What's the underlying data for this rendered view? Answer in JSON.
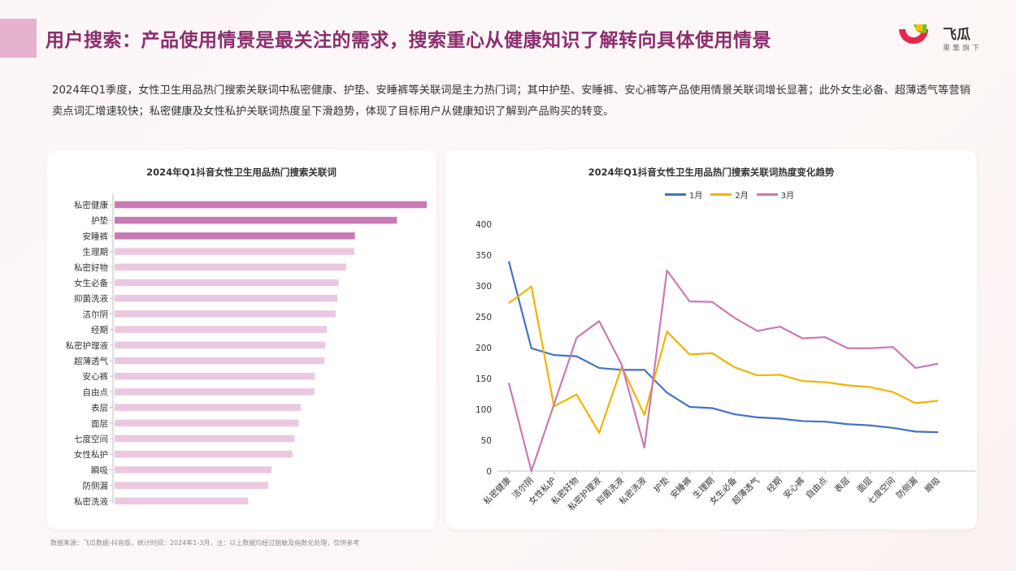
{
  "header": {
    "title": "用户搜索：产品使用情景是最关注的需求，搜索重心从健康知识了解转向具体使用情景",
    "logo_name": "飞瓜",
    "logo_sub": "果集旗下"
  },
  "description": "2024年Q1季度，女性卫生用品热门搜索关联词中私密健康、护垫、安睡裤等关联词是主力热门词；其中护垫、安睡裤、安心裤等产品使用情景关联词增长显著；此外女生必备、超薄透气等营销卖点词汇增速较快；私密健康及女性私护关联词热度呈下滑趋势，体现了目标用户从健康知识了解到产品购买的转变。",
  "footer": "数据来源：飞瓜数据-抖音版，统计时间：2024年1-3月，注：以上数据均经过脱敏及指数化处理，仅供参考",
  "colors": {
    "title": "#8b2e6e",
    "bar_strong": "#c97ab4",
    "bar_light": "#ecc8e0",
    "series_jan": "#4472c4",
    "series_feb": "#f0b400",
    "series_mar": "#c97ab4"
  },
  "chart_data": [
    {
      "type": "bar",
      "orientation": "horizontal",
      "title": "2024年Q1抖音女性卫生用品热门搜索关联词",
      "categories": [
        "私密健康",
        "护垫",
        "安睡裤",
        "生理期",
        "私密好物",
        "女生必备",
        "抑菌洗液",
        "洁尔阴",
        "经期",
        "私密护理液",
        "超薄透气",
        "安心裤",
        "自由点",
        "表层",
        "面层",
        "七度空间",
        "女性私护",
        "瞬吸",
        "防侧漏",
        "私密洗液"
      ],
      "values": [
        100,
        90.5,
        77,
        76.8,
        74.2,
        71.8,
        71.4,
        70.8,
        68,
        67.5,
        67.2,
        64.2,
        64,
        59.7,
        59,
        57.7,
        57,
        50.3,
        49.2,
        42.8
      ],
      "highlight_count": 3
    },
    {
      "type": "line",
      "title": "2024年Q1抖音女性卫生用品热门搜索关联词热度变化趋势",
      "categories": [
        "私密健康",
        "洁尔阴",
        "女性私护",
        "私密好物",
        "私密护理液",
        "抑菌洗液",
        "私密洗液",
        "护垫",
        "安睡裤",
        "生理期",
        "女生必备",
        "超薄透气",
        "经期",
        "安心裤",
        "自由点",
        "表层",
        "面层",
        "七度空间",
        "防侧漏",
        "瞬吸"
      ],
      "ylim": [
        0,
        400
      ],
      "yticks": [
        0,
        50,
        100,
        150,
        200,
        250,
        300,
        350,
        400
      ],
      "series": [
        {
          "name": "1月",
          "values": [
            340,
            199,
            188,
            186,
            167,
            164,
            164,
            127,
            104,
            102,
            92,
            87,
            85,
            81,
            80,
            76,
            74,
            70,
            64,
            63
          ]
        },
        {
          "name": "2月",
          "values": [
            272,
            299,
            105,
            124,
            62,
            169,
            91,
            226,
            189,
            191,
            168,
            155,
            156,
            146,
            144,
            139,
            136,
            128,
            110,
            114
          ]
        },
        {
          "name": "3月",
          "values": [
            143,
            0,
            108,
            216,
            243,
            172,
            38,
            325,
            275,
            274,
            248,
            227,
            234,
            215,
            217,
            199,
            199,
            201,
            167,
            174
          ]
        }
      ],
      "legend_position": "top-center"
    }
  ]
}
